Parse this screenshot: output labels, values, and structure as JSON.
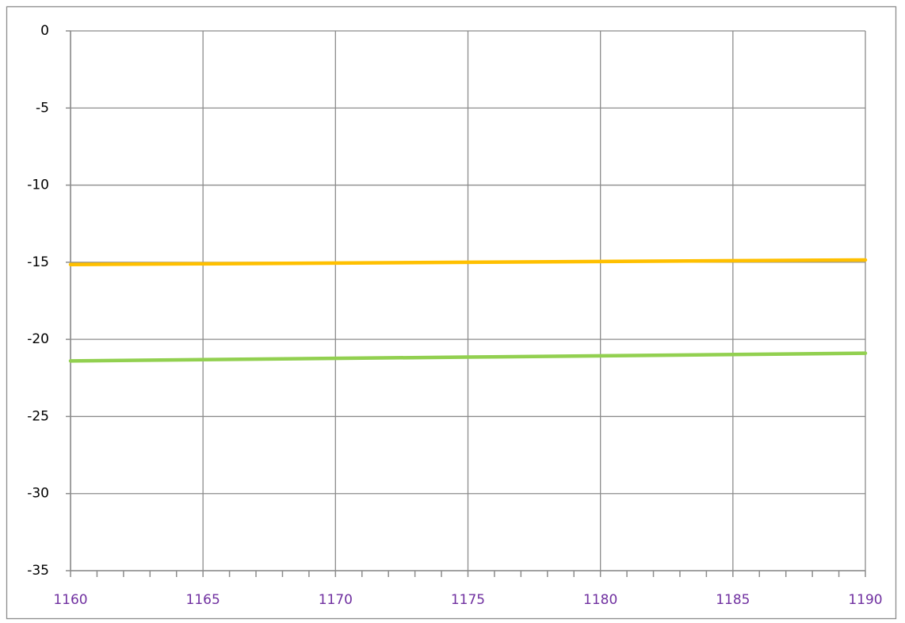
{
  "chart_data": {
    "type": "line",
    "x": [
      1160,
      1175,
      1190
    ],
    "series": [
      {
        "color": "#ffc000",
        "values": [
          -15.15,
          -15.0,
          -14.85
        ]
      },
      {
        "color": "#92d050",
        "values": [
          -21.4,
          -21.15,
          -20.9
        ]
      }
    ],
    "xlim": [
      1160,
      1190
    ],
    "xticks": [
      1160,
      1165,
      1170,
      1175,
      1180,
      1185,
      1190
    ],
    "ylim": [
      -35,
      0
    ],
    "yticks": [
      0,
      -5,
      -10,
      -15,
      -20,
      -25,
      -30,
      -35
    ],
    "grid": true,
    "xtick_color": "#7030a0"
  }
}
